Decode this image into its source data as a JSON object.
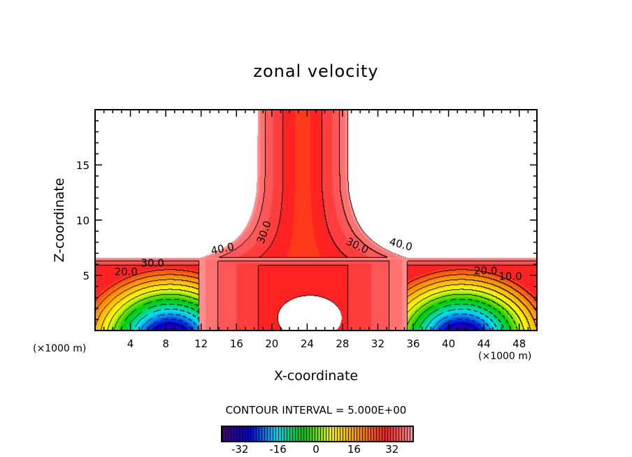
{
  "chart_data": {
    "type": "heatmap",
    "subtype": "filled-contour",
    "title": "zonal velocity",
    "xlabel": "X-coordinate",
    "ylabel": "Z-coordinate",
    "x_unit_label_left": "(×1000 m)",
    "x_unit_label_right": "(×1000 m)",
    "xlim": [
      0,
      50
    ],
    "ylim": [
      0,
      20
    ],
    "xticks": [
      4,
      8,
      12,
      16,
      20,
      24,
      28,
      32,
      36,
      40,
      44,
      48
    ],
    "yticks": [
      5,
      10,
      15
    ],
    "contour_interval_text": "CONTOUR INTERVAL = 5.000E+00",
    "contour_interval": 5,
    "contour_labels": [
      "40.0",
      "30.0",
      "20.0",
      "30.0",
      "30.0",
      "40.0",
      "20.0",
      "10.0"
    ],
    "colorbar": {
      "range": [
        -40,
        40
      ],
      "ticks": [
        "-32",
        "-16",
        "0",
        "16",
        "32"
      ],
      "tick_values": [
        -32,
        -16,
        0,
        16,
        32
      ]
    },
    "colormap": [
      "#4b0082",
      "#0000e0",
      "#00e0ff",
      "#00d000",
      "#ffff00",
      "#ff9900",
      "#ff2020",
      "#ff9a9a"
    ]
  }
}
